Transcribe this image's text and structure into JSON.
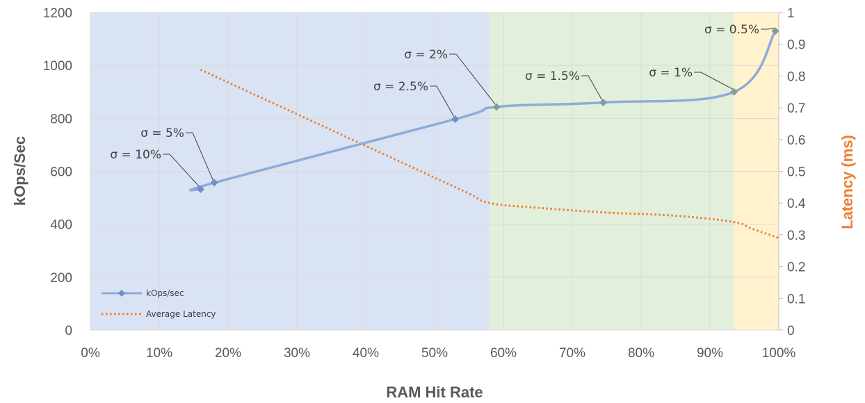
{
  "chart_data": {
    "type": "line",
    "x_axis": {
      "label": "RAM Hit Rate",
      "min": 0,
      "max": 100,
      "unit": "%",
      "ticks": [
        "0%",
        "10%",
        "20%",
        "30%",
        "40%",
        "50%",
        "60%",
        "70%",
        "80%",
        "90%",
        "100%"
      ]
    },
    "y_axis_left": {
      "label": "kOps/Sec",
      "min": 0,
      "max": 1200,
      "ticks": [
        "0",
        "200",
        "400",
        "600",
        "800",
        "1000",
        "1200"
      ]
    },
    "y_axis_right": {
      "label": "Latency (ms)",
      "min": 0,
      "max": 1,
      "ticks": [
        "0",
        "0.1",
        "0.2",
        "0.3",
        "0.4",
        "0.5",
        "0.6",
        "0.7",
        "0.8",
        "0.9",
        "1"
      ]
    },
    "regions": [
      {
        "x_start": 0,
        "x_end": 58,
        "color": "#dae3f3"
      },
      {
        "x_start": 58,
        "x_end": 93.5,
        "color": "#e2efda"
      },
      {
        "x_start": 93.5,
        "x_end": 100,
        "color": "#fff2cc"
      }
    ],
    "series": [
      {
        "name": "kOps/sec",
        "axis": "left",
        "style": "solid",
        "marker": "diamond",
        "points": [
          {
            "x": 16,
            "y": 532,
            "label": "σ = 10%"
          },
          {
            "x": 18,
            "y": 557,
            "label": "σ = 5%"
          },
          {
            "x": 53,
            "y": 797,
            "label": "σ = 2.5%"
          },
          {
            "x": 59,
            "y": 843,
            "label": "σ = 2%"
          },
          {
            "x": 74.5,
            "y": 860,
            "label": "σ = 1.5%"
          },
          {
            "x": 93.5,
            "y": 900,
            "label": "σ = 1%"
          },
          {
            "x": 99.5,
            "y": 1130,
            "label": "σ = 0.5%"
          }
        ]
      },
      {
        "name": "Average Latency",
        "axis": "right",
        "style": "dotted",
        "points": [
          {
            "x": 16,
            "y": 0.82
          },
          {
            "x": 18,
            "y": 0.8
          },
          {
            "x": 30,
            "y": 0.68
          },
          {
            "x": 40,
            "y": 0.58
          },
          {
            "x": 50,
            "y": 0.48
          },
          {
            "x": 55,
            "y": 0.43
          },
          {
            "x": 58,
            "y": 0.4
          },
          {
            "x": 65,
            "y": 0.385
          },
          {
            "x": 75,
            "y": 0.37
          },
          {
            "x": 85,
            "y": 0.36
          },
          {
            "x": 93.5,
            "y": 0.34
          },
          {
            "x": 96,
            "y": 0.32
          },
          {
            "x": 100,
            "y": 0.29
          }
        ]
      }
    ],
    "legend": {
      "position": "bottom-left",
      "entries": [
        "kOps/sec",
        "Average Latency"
      ]
    },
    "colors": {
      "kops": "#8faadc",
      "kops_marker": "#6d8fc9",
      "kops_marker_region": "#7f9f9f",
      "latency": "#ed7d31",
      "latency_title": "#ed7d31",
      "grid": "#d9d9d9",
      "axis_title": "#595959"
    },
    "grid": true
  }
}
